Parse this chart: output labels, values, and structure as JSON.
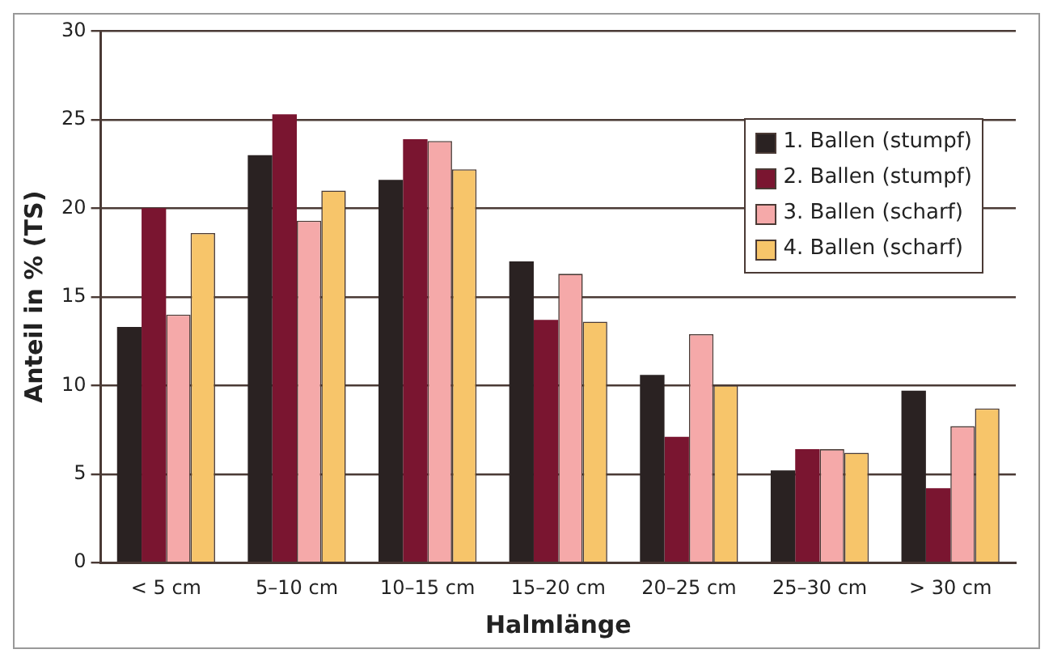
{
  "chart_data": {
    "type": "bar",
    "xlabel": "Halmlänge",
    "ylabel": "Anteil in % (TS)",
    "categories": [
      "< 5 cm",
      "5–10 cm",
      "10–15 cm",
      "15–20 cm",
      "20–25 cm",
      "25–30 cm",
      "> 30 cm"
    ],
    "series": [
      {
        "name": "1. Ballen (stumpf)",
        "color": "#2a2222",
        "values": [
          13.3,
          23,
          21.6,
          17,
          10.6,
          5.2,
          9.7
        ]
      },
      {
        "name": "2. Ballen (stumpf)",
        "color": "#7a1530",
        "values": [
          20,
          25.3,
          23.9,
          13.7,
          7.1,
          6.4,
          4.2
        ]
      },
      {
        "name": "3. Ballen (scharf)",
        "color": "#f5a9a9",
        "values": [
          14,
          19.3,
          23.8,
          16.3,
          12.9,
          6.4,
          7.7
        ]
      },
      {
        "name": "4. Ballen (scharf)",
        "color": "#f7c56a",
        "values": [
          18.6,
          21,
          22.2,
          13.6,
          10,
          6.2,
          8.7
        ]
      }
    ],
    "ylim": [
      0,
      30
    ],
    "yticks": [
      0,
      5,
      10,
      15,
      20,
      25,
      30
    ],
    "grid": "y",
    "legend": "top right"
  }
}
